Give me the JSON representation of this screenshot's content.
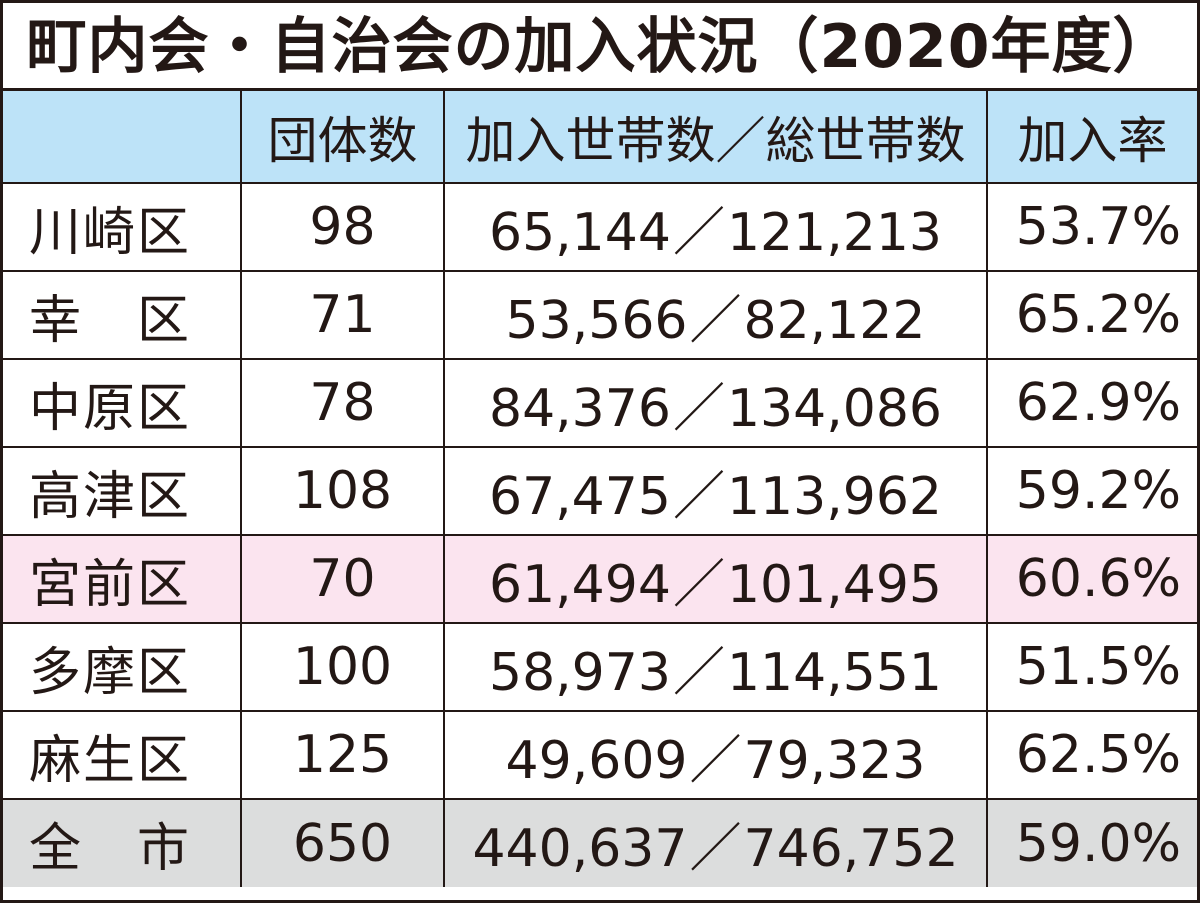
{
  "title": "町内会・自治会の加入状況（2020年度）",
  "chart_data": {
    "type": "table",
    "title": "町内会・自治会の加入状況（2020年度）",
    "columns": [
      "",
      "団体数",
      "加入世帯数／総世帯数",
      "加入率"
    ],
    "rows": [
      {
        "name": "川崎区",
        "groups": "98",
        "joined": "65,144",
        "total": "121,213",
        "rate": "53.7%"
      },
      {
        "name": "幸　区",
        "groups": "71",
        "joined": "53,566",
        "total": "82,122",
        "rate": "65.2%"
      },
      {
        "name": "中原区",
        "groups": "78",
        "joined": "84,376",
        "total": "134,086",
        "rate": "62.9%"
      },
      {
        "name": "高津区",
        "groups": "108",
        "joined": "67,475",
        "total": "113,962",
        "rate": "59.2%"
      },
      {
        "name": "宮前区",
        "groups": "70",
        "joined": "61,494",
        "total": "101,495",
        "rate": "60.6%"
      },
      {
        "name": "多摩区",
        "groups": "100",
        "joined": "58,973",
        "total": "114,551",
        "rate": "51.5%"
      },
      {
        "name": "麻生区",
        "groups": "125",
        "joined": "49,609",
        "total": "79,323",
        "rate": "62.5%"
      },
      {
        "name": "全　市",
        "groups": "650",
        "joined": "440,637",
        "total": "746,752",
        "rate": "59.0%"
      }
    ],
    "separator": "／",
    "colors": {
      "header_bg": "#bde3f8",
      "highlight_bg": "#fbe4ef",
      "total_bg": "#dcdddd",
      "line": "#231815"
    }
  }
}
